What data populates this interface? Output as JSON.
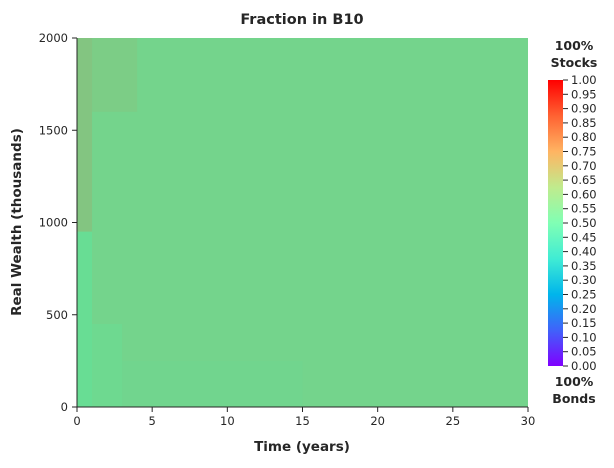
{
  "chart_data": {
    "type": "heatmap",
    "title": "Fraction in B10",
    "xlabel": "Time (years)",
    "ylabel": "Real Wealth (thousands)",
    "xlim": [
      0,
      30
    ],
    "ylim": [
      0,
      2000
    ],
    "x_ticks": [
      "0",
      "5",
      "10",
      "15",
      "20",
      "25",
      "30"
    ],
    "y_ticks": [
      "0",
      "500",
      "1000",
      "1500",
      "2000"
    ],
    "colorbar": {
      "colormap": "rainbow",
      "range": [
        0.0,
        1.0
      ],
      "ticks": [
        "0.00",
        "0.05",
        "0.10",
        "0.15",
        "0.20",
        "0.25",
        "0.30",
        "0.35",
        "0.40",
        "0.45",
        "0.50",
        "0.55",
        "0.60",
        "0.65",
        "0.70",
        "0.75",
        "0.80",
        "0.85",
        "0.90",
        "0.95",
        "1.00"
      ],
      "top_label_line1": "100%",
      "top_label_line2": "Stocks",
      "bottom_label_line1": "100%",
      "bottom_label_line2": "Bonds"
    },
    "grid": false,
    "regions": [
      {
        "x": [
          0,
          30
        ],
        "y": [
          0,
          2000
        ],
        "value": 0.68
      },
      {
        "x": [
          0,
          4
        ],
        "y": [
          1600,
          2000
        ],
        "value": 0.7
      },
      {
        "x": [
          0,
          1
        ],
        "y": [
          950,
          2000
        ],
        "value": 0.72
      },
      {
        "x": [
          0,
          1
        ],
        "y": [
          0,
          950
        ],
        "value": 0.65
      },
      {
        "x": [
          1,
          3
        ],
        "y": [
          0,
          450
        ],
        "value": 0.665
      },
      {
        "x": [
          3,
          15
        ],
        "y": [
          0,
          250
        ],
        "value": 0.675
      }
    ]
  }
}
